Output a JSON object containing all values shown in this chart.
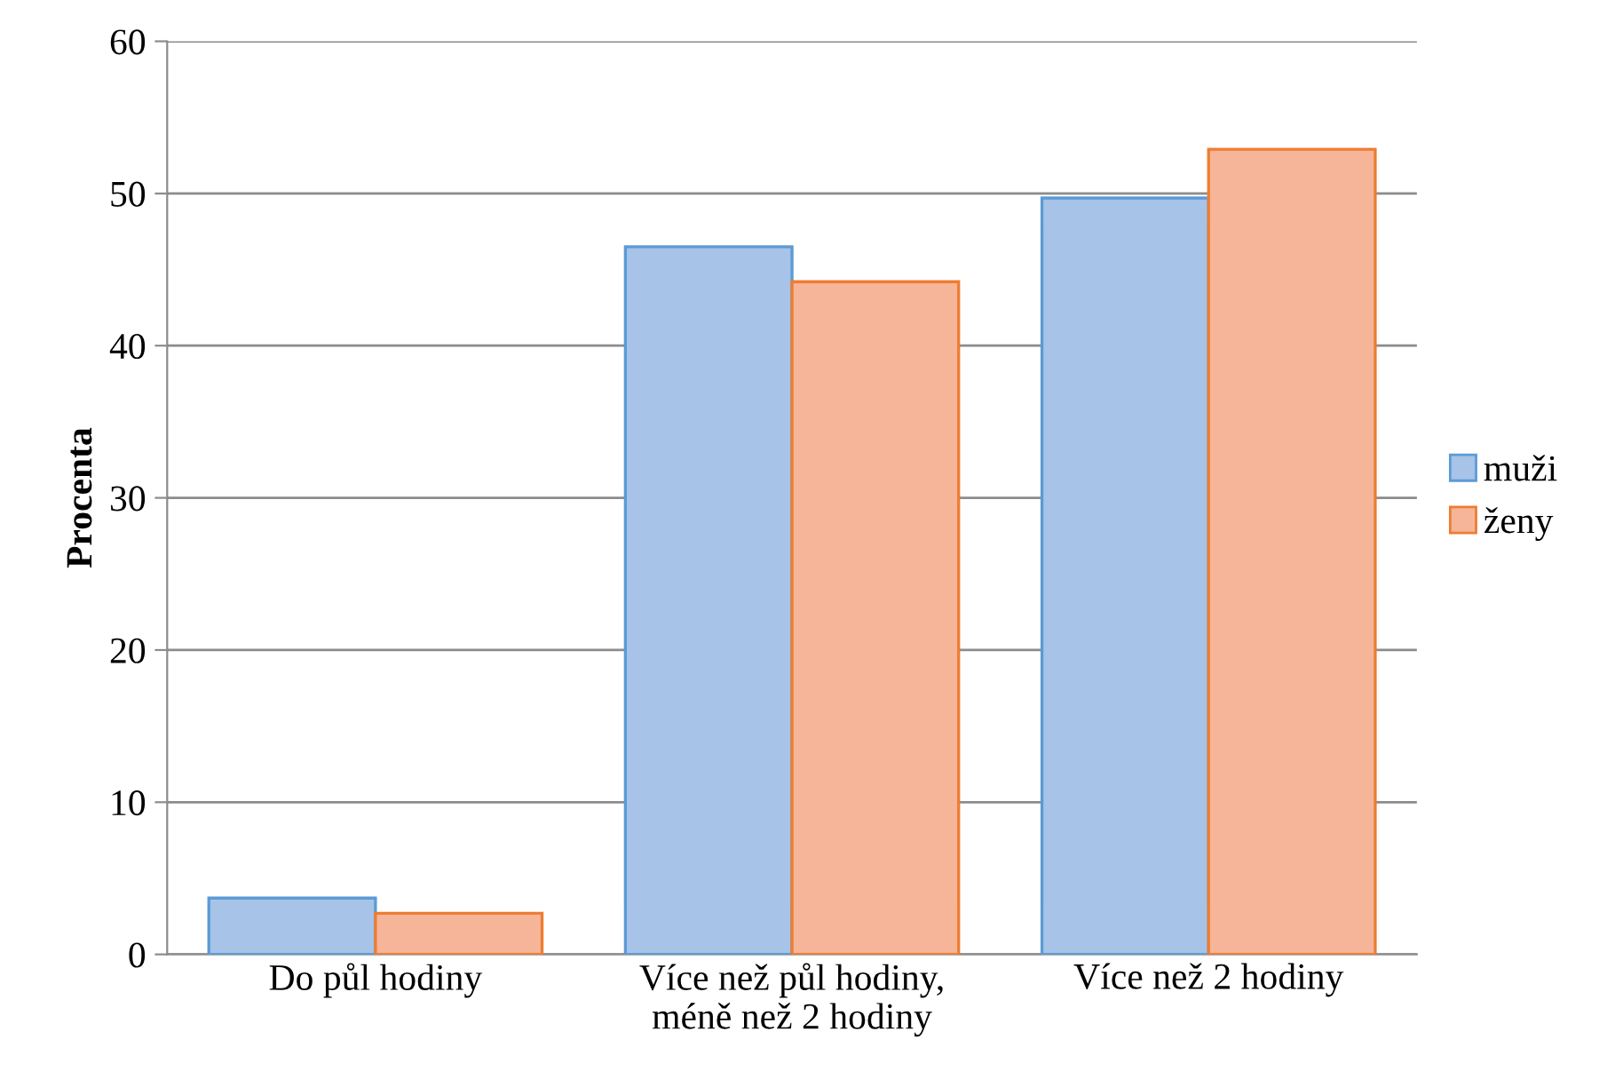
{
  "chart_data": {
    "type": "bar",
    "ylabel": "Procenta",
    "categories": [
      "Do půl hodiny",
      "Více než půl hodiny,\nméně než 2 hodiny",
      "Více než 2 hodiny"
    ],
    "series": [
      {
        "name": "muži",
        "color": "#a7c3e8",
        "values": [
          3.7,
          46.5,
          49.7
        ]
      },
      {
        "name": "ženy",
        "color": "#f6b599",
        "values": [
          2.7,
          44.2,
          52.9
        ]
      }
    ],
    "ylim": [
      0,
      60
    ],
    "yticks": [
      0,
      10,
      20,
      30,
      40,
      50,
      60
    ],
    "grid": "y",
    "legend": "right"
  }
}
